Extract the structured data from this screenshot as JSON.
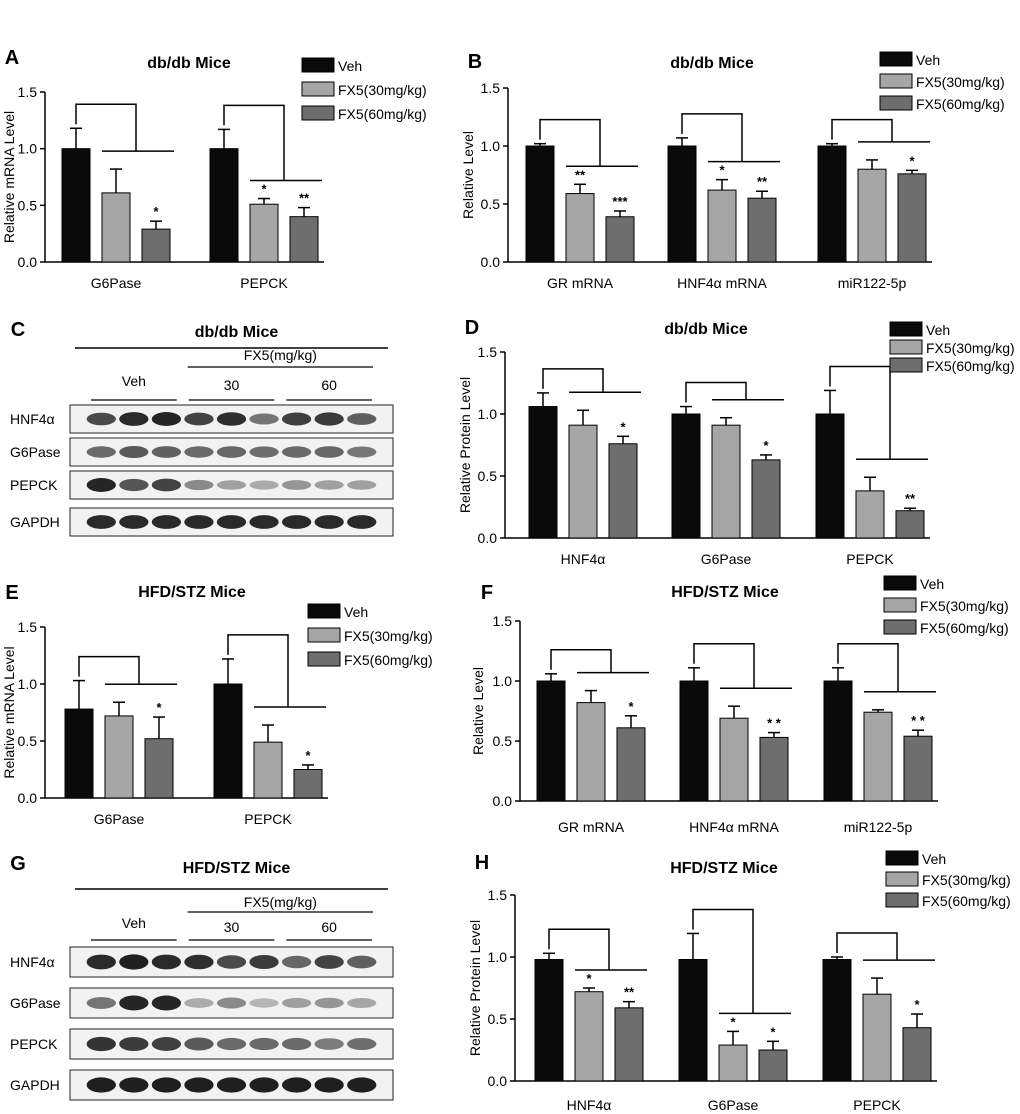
{
  "colors": {
    "veh": "#0a0a0a",
    "fx30": "#a6a6a6",
    "fx60": "#6e6e6e"
  },
  "legend": [
    "Veh",
    "FX5(30mg/kg)",
    "FX5(60mg/kg)"
  ],
  "chart_data": [
    {
      "panel": "A",
      "type": "bar",
      "title": "db/db Mice",
      "ylabel": "Relative  mRNA Level",
      "ylim": [
        0,
        1.5
      ],
      "yticks": [
        "0.0",
        "0.5",
        "1.0",
        "1.5"
      ],
      "categories": [
        "G6Pase",
        "PEPCK"
      ],
      "series": [
        {
          "name": "Veh",
          "values": [
            1.0,
            1.0
          ],
          "errors": [
            0.18,
            0.17
          ],
          "sig": [
            "",
            ""
          ]
        },
        {
          "name": "FX5(30mg/kg)",
          "values": [
            0.61,
            0.51
          ],
          "errors": [
            0.21,
            0.05
          ],
          "sig": [
            "",
            "*"
          ]
        },
        {
          "name": "FX5(60mg/kg)",
          "values": [
            0.29,
            0.4
          ],
          "errors": [
            0.07,
            0.08
          ],
          "sig": [
            "*",
            "**"
          ]
        }
      ]
    },
    {
      "panel": "B",
      "type": "bar",
      "title": "db/db Mice",
      "ylabel": "Relative   Level",
      "ylim": [
        0,
        1.5
      ],
      "yticks": [
        "0.0",
        "0.5",
        "1.0",
        "1.5"
      ],
      "categories": [
        "GR mRNA",
        "HNF4α mRNA",
        "miR122-5p"
      ],
      "series": [
        {
          "name": "Veh",
          "values": [
            1.0,
            1.0,
            1.0
          ],
          "errors": [
            0.02,
            0.07,
            0.02
          ],
          "sig": [
            "",
            "",
            ""
          ]
        },
        {
          "name": "FX5(30mg/kg)",
          "values": [
            0.59,
            0.62,
            0.8
          ],
          "errors": [
            0.08,
            0.09,
            0.08
          ],
          "sig": [
            "**",
            "*",
            ""
          ]
        },
        {
          "name": "FX5(60mg/kg)",
          "values": [
            0.39,
            0.55,
            0.76
          ],
          "errors": [
            0.05,
            0.06,
            0.03
          ],
          "sig": [
            "***",
            "**",
            "*"
          ]
        }
      ]
    },
    {
      "panel": "D",
      "type": "bar",
      "title": "db/db Mice",
      "ylabel": "Relative  Protein Level",
      "ylim": [
        0,
        1.5
      ],
      "yticks": [
        "0.0",
        "0.5",
        "1.0",
        "1.5"
      ],
      "categories": [
        "HNF4α",
        "G6Pase",
        "PEPCK"
      ],
      "series": [
        {
          "name": "Veh",
          "values": [
            1.06,
            1.0,
            1.0
          ],
          "errors": [
            0.11,
            0.06,
            0.19
          ],
          "sig": [
            "",
            "",
            ""
          ]
        },
        {
          "name": "FX5(30mg/kg)",
          "values": [
            0.91,
            0.91,
            0.38
          ],
          "errors": [
            0.12,
            0.06,
            0.11
          ],
          "sig": [
            "",
            "",
            ""
          ]
        },
        {
          "name": "FX5(60mg/kg)",
          "values": [
            0.76,
            0.63,
            0.22
          ],
          "errors": [
            0.06,
            0.04,
            0.02
          ],
          "sig": [
            "*",
            "*",
            "**"
          ]
        }
      ]
    },
    {
      "panel": "E",
      "type": "bar",
      "title": "HFD/STZ Mice",
      "ylabel": "Relative  mRNA Level",
      "ylim": [
        0,
        1.5
      ],
      "yticks": [
        "0.0",
        "0.5",
        "1.0",
        "1.5"
      ],
      "categories": [
        "G6Pase",
        "PEPCK"
      ],
      "series": [
        {
          "name": "Veh",
          "values": [
            0.78,
            1.0
          ],
          "errors": [
            0.25,
            0.22
          ],
          "sig": [
            "",
            ""
          ]
        },
        {
          "name": "FX5(30mg/kg)",
          "values": [
            0.72,
            0.49
          ],
          "errors": [
            0.12,
            0.15
          ],
          "sig": [
            "",
            ""
          ]
        },
        {
          "name": "FX5(60mg/kg)",
          "values": [
            0.52,
            0.25
          ],
          "errors": [
            0.19,
            0.04
          ],
          "sig": [
            "*",
            "*"
          ]
        }
      ]
    },
    {
      "panel": "F",
      "type": "bar",
      "title": "HFD/STZ Mice",
      "ylabel": "Relative  Level",
      "ylim": [
        0,
        1.5
      ],
      "yticks": [
        "0.0",
        "0.5",
        "1.0",
        "1.5"
      ],
      "categories": [
        "GR mRNA",
        "HNF4α mRNA",
        "miR122-5p"
      ],
      "series": [
        {
          "name": "Veh",
          "values": [
            1.0,
            1.0,
            1.0
          ],
          "errors": [
            0.06,
            0.11,
            0.11
          ],
          "sig": [
            "",
            "",
            ""
          ]
        },
        {
          "name": "FX5(30mg/kg)",
          "values": [
            0.82,
            0.69,
            0.74
          ],
          "errors": [
            0.1,
            0.1,
            0.02
          ],
          "sig": [
            "",
            "",
            ""
          ]
        },
        {
          "name": "FX5(60mg/kg)",
          "values": [
            0.61,
            0.53,
            0.54
          ],
          "errors": [
            0.1,
            0.04,
            0.05
          ],
          "sig": [
            "*",
            "* *",
            "* *"
          ]
        }
      ]
    },
    {
      "panel": "H",
      "type": "bar",
      "title": "HFD/STZ Mice",
      "ylabel": "Relative  Protein Level",
      "ylim": [
        0,
        1.5
      ],
      "yticks": [
        "0.0",
        "0.5",
        "1.0",
        "1.5"
      ],
      "categories": [
        "HNF4α",
        "G6Pase",
        "PEPCK"
      ],
      "series": [
        {
          "name": "Veh",
          "values": [
            0.98,
            0.98,
            0.98
          ],
          "errors": [
            0.05,
            0.21,
            0.02
          ],
          "sig": [
            "",
            "",
            ""
          ]
        },
        {
          "name": "FX5(30mg/kg)",
          "values": [
            0.72,
            0.29,
            0.7
          ],
          "errors": [
            0.03,
            0.11,
            0.13
          ],
          "sig": [
            "*",
            "*",
            ""
          ]
        },
        {
          "name": "FX5(60mg/kg)",
          "values": [
            0.59,
            0.25,
            0.43
          ],
          "errors": [
            0.05,
            0.07,
            0.11
          ],
          "sig": [
            "**",
            "*",
            "*"
          ]
        }
      ]
    }
  ],
  "blots": [
    {
      "panel": "C",
      "title": "db/db Mice",
      "group_header": "FX5(mg/kg)",
      "lane_groups": [
        "Veh",
        "30",
        "60"
      ],
      "rows": [
        {
          "label": "HNF4α",
          "intensities": [
            0.75,
            0.9,
            0.92,
            0.78,
            0.88,
            0.55,
            0.8,
            0.82,
            0.65
          ]
        },
        {
          "label": "G6Pase",
          "intensities": [
            0.6,
            0.68,
            0.64,
            0.6,
            0.62,
            0.58,
            0.6,
            0.62,
            0.55
          ]
        },
        {
          "label": "PEPCK",
          "intensities": [
            0.92,
            0.7,
            0.78,
            0.45,
            0.35,
            0.3,
            0.4,
            0.35,
            0.35
          ]
        },
        {
          "label": "GAPDH",
          "intensities": [
            0.9,
            0.9,
            0.9,
            0.9,
            0.9,
            0.9,
            0.9,
            0.9,
            0.9
          ]
        }
      ]
    },
    {
      "panel": "G",
      "title": "HFD/STZ Mice",
      "group_header": "FX5(mg/kg)",
      "lane_groups": [
        "Veh",
        "30",
        "60"
      ],
      "rows": [
        {
          "label": "HNF4α",
          "intensities": [
            0.9,
            0.95,
            0.9,
            0.88,
            0.75,
            0.82,
            0.62,
            0.78,
            0.65
          ]
        },
        {
          "label": "G6Pase",
          "intensities": [
            0.55,
            0.92,
            0.92,
            0.3,
            0.45,
            0.25,
            0.35,
            0.4,
            0.32
          ]
        },
        {
          "label": "PEPCK",
          "intensities": [
            0.85,
            0.82,
            0.8,
            0.68,
            0.6,
            0.6,
            0.6,
            0.52,
            0.58
          ]
        },
        {
          "label": "GAPDH",
          "intensities": [
            0.95,
            0.95,
            0.95,
            0.95,
            0.95,
            0.95,
            0.95,
            0.95,
            0.95
          ]
        }
      ]
    }
  ]
}
